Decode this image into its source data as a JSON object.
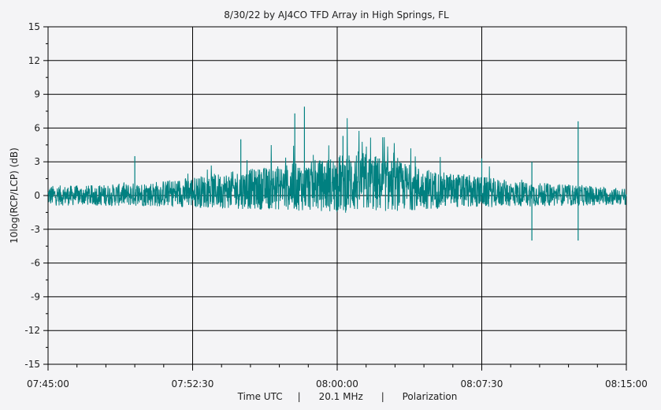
{
  "chart_data": {
    "type": "line",
    "title": "8/30/22  by  AJ4CO TFD Array  in  High Springs, FL",
    "ylabel": "10log(RCP/LCP) (dB)",
    "xlabel": "Time UTC     |      20.1 MHz      |      Polarization",
    "ylim": [
      -15,
      15
    ],
    "y_ticks": [
      "15",
      "12",
      "9",
      "6",
      "3",
      "0",
      "-3",
      "-6",
      "-9",
      "-12",
      "-15"
    ],
    "x_ticks": [
      "07:45:00",
      "07:52:30",
      "08:00:00",
      "08:07:30",
      "08:15:00"
    ],
    "grid": true,
    "colors": {
      "series": "#008080",
      "grid": "#000000",
      "background": "#f4f4f6"
    },
    "series": [
      {
        "x_minutes_from_start": [
          0,
          2,
          4,
          6,
          8,
          10,
          12,
          14,
          16,
          18,
          20,
          22,
          24,
          26,
          28,
          30
        ],
        "values": [
          0,
          0,
          0.2,
          0.5,
          1,
          1.5,
          2,
          2.5,
          3.5,
          2.5,
          1.5,
          1,
          0.5,
          0.2,
          0,
          -0.3
        ],
        "spikes": [
          {
            "x_minutes_from_start": 4.5,
            "value": 3.5
          },
          {
            "x_minutes_from_start": 10.0,
            "value": 5.0
          },
          {
            "x_minutes_from_start": 12.8,
            "value": 7.3
          },
          {
            "x_minutes_from_start": 13.3,
            "value": 7.9
          },
          {
            "x_minutes_from_start": 15.3,
            "value": 5.3
          },
          {
            "x_minutes_from_start": 22.5,
            "value": 3.3
          },
          {
            "x_minutes_from_start": 25.1,
            "value": 3.0
          },
          {
            "x_minutes_from_start": 25.1,
            "value": -4.0
          },
          {
            "x_minutes_from_start": 27.5,
            "value": 6.6
          },
          {
            "x_minutes_from_start": 27.5,
            "value": -4.0
          }
        ]
      }
    ]
  }
}
